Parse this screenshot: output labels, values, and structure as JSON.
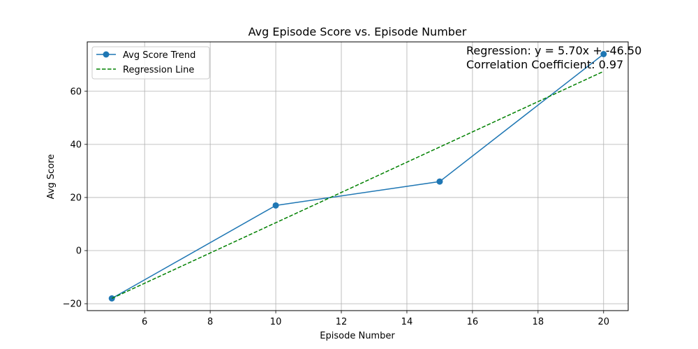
{
  "chart_data": {
    "type": "line",
    "title": "Avg Episode Score vs. Episode Number",
    "xlabel": "Episode Number",
    "ylabel": "Avg Score",
    "xlim": [
      4.25,
      20.75
    ],
    "ylim": [
      -22.6,
      78.6
    ],
    "grid": true,
    "legend_placement": "top-left",
    "x_ticks": [
      6,
      8,
      10,
      12,
      14,
      16,
      18,
      20
    ],
    "y_ticks": [
      -20,
      0,
      20,
      40,
      60
    ],
    "x_tick_labels": [
      "6",
      "8",
      "10",
      "12",
      "14",
      "16",
      "18",
      "20"
    ],
    "y_tick_labels": [
      "−20",
      "0",
      "20",
      "40",
      "60"
    ],
    "series": [
      {
        "name": "Avg Score Trend",
        "style": "solid-with-markers",
        "color": "#1f77b4",
        "x": [
          5,
          10,
          15,
          20
        ],
        "y": [
          -18,
          17,
          26,
          74
        ]
      },
      {
        "name": "Regression Line",
        "style": "dashed",
        "color": "#008000",
        "x": [
          5,
          20
        ],
        "y": [
          -18,
          67.5
        ]
      }
    ],
    "annotations": [
      "Regression: y = 5.70x + -46.50",
      "Correlation Coefficient: 0.97"
    ]
  }
}
